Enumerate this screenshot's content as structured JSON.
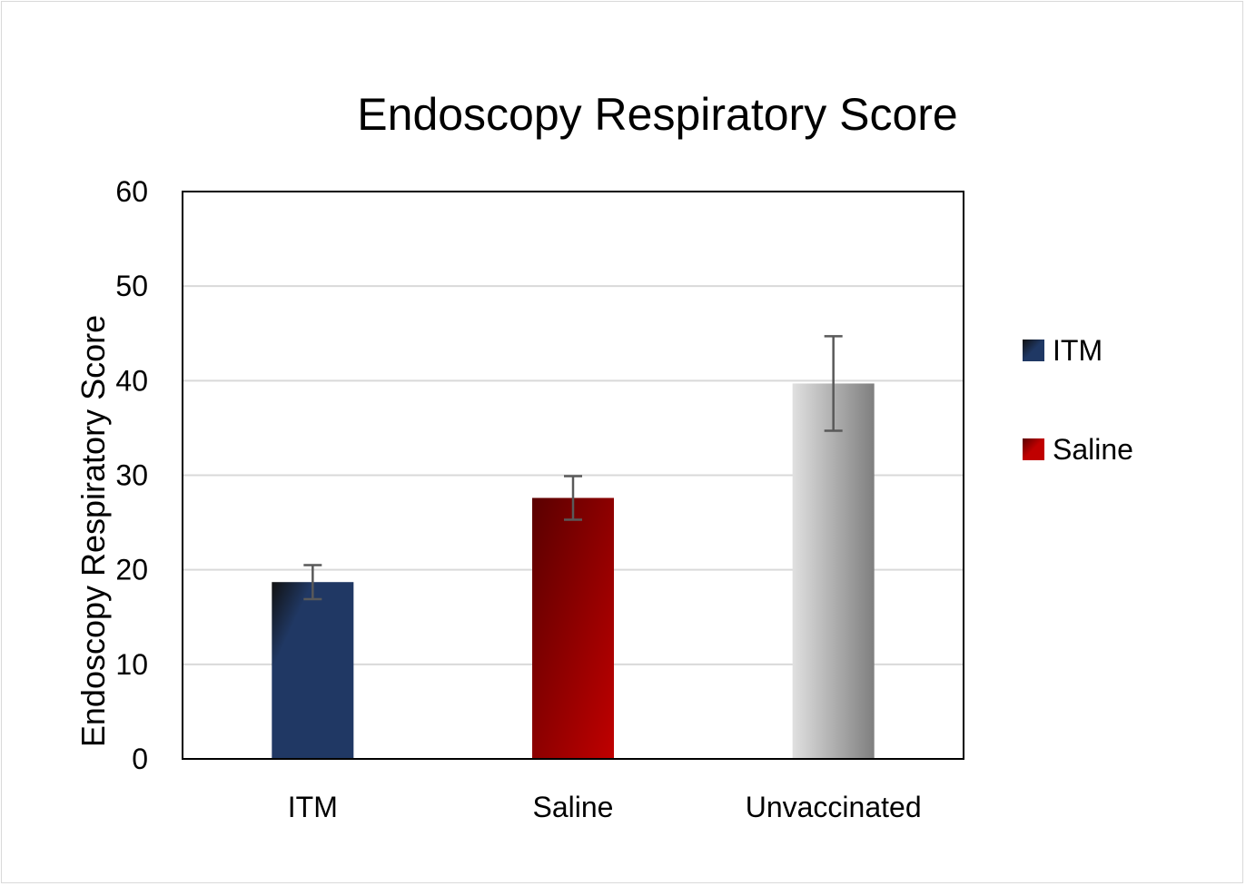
{
  "chart_data": {
    "type": "bar",
    "title": "Endoscopy Respiratory Score",
    "xlabel": "",
    "ylabel": "Endoscopy Respiratory Score",
    "categories": [
      "ITM",
      "Saline",
      "Unvaccinated"
    ],
    "values": [
      18.7,
      27.6,
      39.7
    ],
    "errors": [
      1.8,
      2.3,
      5.0
    ],
    "ylim": [
      0,
      60
    ],
    "yticks": [
      "0",
      "10",
      "20",
      "30",
      "40",
      "50",
      "60"
    ],
    "grid": true,
    "legend": {
      "placement": "right",
      "entries": [
        {
          "label": "ITM",
          "color": "#1f3864"
        },
        {
          "label": "Saline",
          "color": "#c00000"
        }
      ]
    },
    "bar_colors": [
      {
        "dark": "#111111",
        "light": "#203864"
      },
      {
        "dark": "#5a0000",
        "light": "#c00000"
      },
      {
        "dark": "#7f7f7f",
        "light": "#e0e0e0"
      }
    ]
  }
}
